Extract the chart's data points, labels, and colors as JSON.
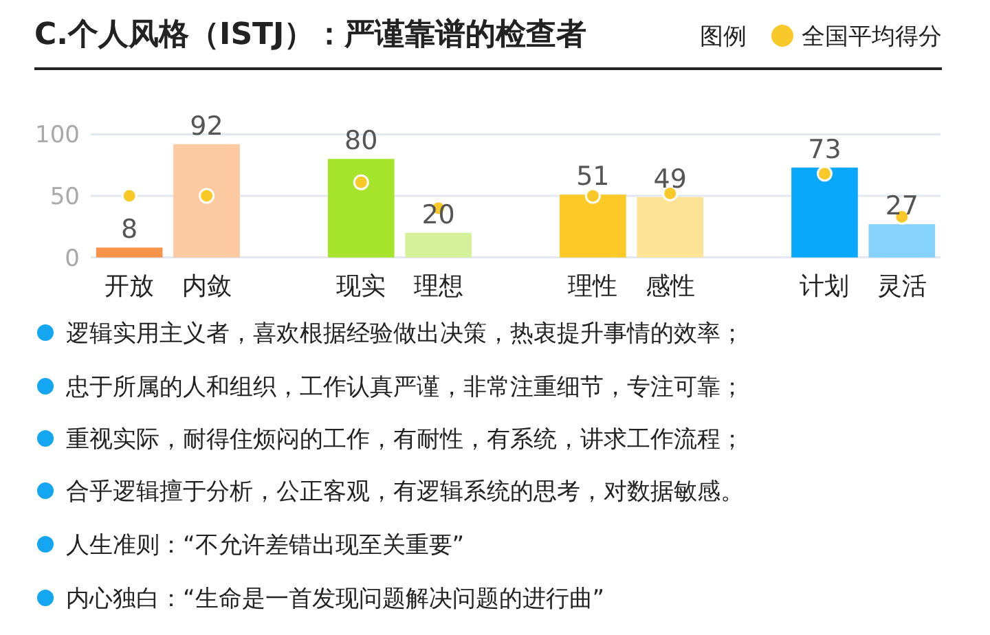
{
  "chart_data": {
    "type": "bar",
    "title": "C.个人风格（ISTJ）：严谨靠谱的检查者",
    "categories": [
      "开放",
      "内敛",
      null,
      "现实",
      "理想",
      null,
      "理性",
      "感性",
      null,
      "计划",
      "灵活"
    ],
    "series": [
      {
        "colors": [
          "#f7924a",
          "#fdc9a0",
          null,
          "#a5e42b",
          "#d5f29a",
          null,
          "#fdc927",
          "#fde396",
          null,
          "#0aa8fa",
          "#85d3fc"
        ],
        "values": [
          8,
          92,
          null,
          80,
          20,
          null,
          51,
          49,
          null,
          73,
          27
        ],
        "value_labels": [
          "8",
          "92",
          null,
          "80",
          "20",
          null,
          "51",
          "49",
          null,
          "73",
          "27"
        ]
      },
      {
        "type": "scatter",
        "name": "全国平均得分",
        "color": "#f8c928",
        "values": [
          50,
          50,
          null,
          61,
          40,
          null,
          50,
          52,
          null,
          68,
          33
        ]
      }
    ],
    "ylim": [
      0,
      100
    ],
    "yticks": [
      0,
      50,
      100
    ],
    "grid": "y",
    "legend": "top right",
    "legend_title": "图例",
    "marker": "circle",
    "annotations": [
      "逻辑实用主义者，喜欢根据经验做出决策，热衷提升事情的效率；",
      "忠于所属的人和组织，工作认真严谨，非常注重细节，专注可靠；",
      "重视实际，耐得住烦闷的工作，有耐性，有系统，讲求工作流程；",
      "合乎逻辑擅于分析，公正客观，有逻辑系统的思考，对数据敏感。",
      "人生准则：“不允许差错出现至关重要”",
      "内心独白：“生命是一首发现问题解决问题的进行曲”"
    ]
  }
}
